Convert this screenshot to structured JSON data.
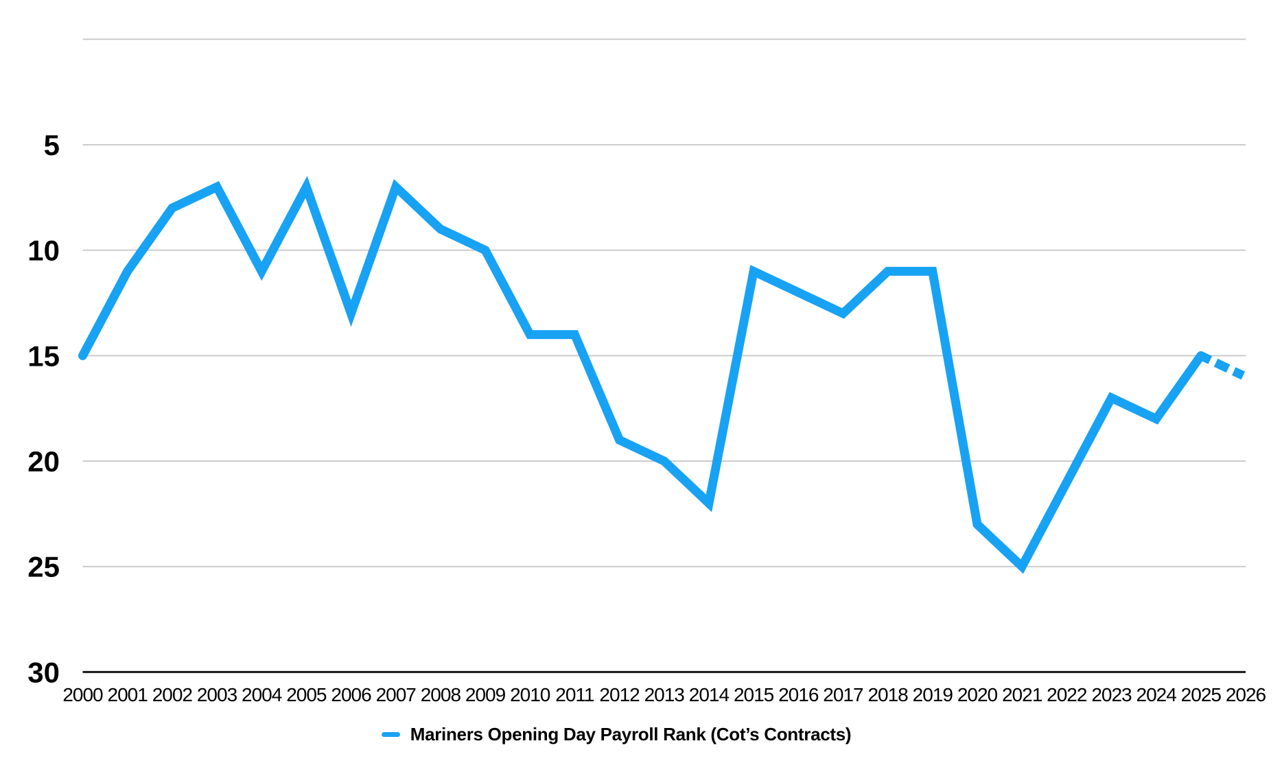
{
  "page": {
    "background": "#ffffff"
  },
  "chart_data": {
    "type": "line",
    "title": "",
    "categories": [
      "2000",
      "2001",
      "2002",
      "2003",
      "2004",
      "2005",
      "2006",
      "2007",
      "2008",
      "2009",
      "2010",
      "2011",
      "2012",
      "2013",
      "2014",
      "2015",
      "2016",
      "2017",
      "2018",
      "2019",
      "2020",
      "2021",
      "2022",
      "2023",
      "2024",
      "2025",
      "2026"
    ],
    "series": [
      {
        "name": "Mariners Opening Day Payroll Rank (Cot’s Contracts)",
        "values": [
          15,
          11,
          8,
          7,
          11,
          7,
          13,
          7,
          9,
          10,
          14,
          14,
          19,
          20,
          22,
          11,
          12,
          13,
          11,
          11,
          23,
          25,
          21,
          17,
          18,
          15,
          16
        ],
        "color": "#18A2F4",
        "projected_last_segment": true
      }
    ],
    "xlabel": "",
    "ylabel": "",
    "y_axis": {
      "ticks": [
        5,
        10,
        15,
        20,
        25,
        30
      ],
      "min": 0,
      "max": 30,
      "inverted": true,
      "gridlines_at": [
        0,
        5,
        10,
        15,
        20,
        25
      ]
    },
    "legend_position": "bottom",
    "grid": true
  },
  "legend": {
    "label": "Mariners Opening Day Payroll Rank (Cot’s Contracts)",
    "marker_color": "#18A2F4"
  },
  "colors": {
    "line": "#18A2F4",
    "grid": "#CBCBCB",
    "axis": "#161616",
    "text": "#000000"
  }
}
